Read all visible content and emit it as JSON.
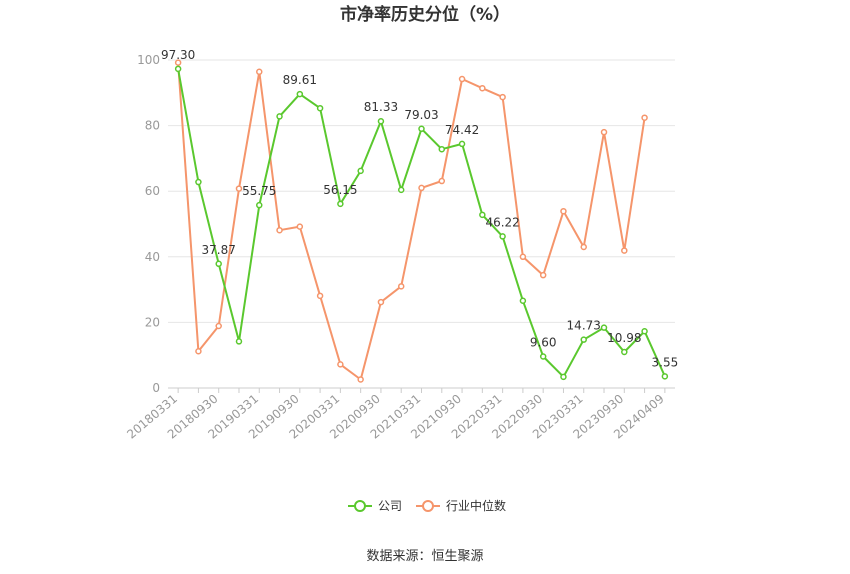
{
  "chart_data": {
    "type": "line",
    "title": "市净率历史分位（%）",
    "source": "数据来源：恒生聚源",
    "ylim": [
      0,
      100
    ],
    "yticks": [
      "0",
      "20",
      "40",
      "60",
      "80",
      "100"
    ],
    "x": [
      "20180331",
      "20180630",
      "20180930",
      "20181231",
      "20190331",
      "20190630",
      "20190930",
      "20191231",
      "20200331",
      "20200630",
      "20200930",
      "20201231",
      "20210331",
      "20210630",
      "20210930",
      "20211231",
      "20220331",
      "20220630",
      "20220930",
      "20221231",
      "20230331",
      "20230630",
      "20230930",
      "20231231",
      "20240409"
    ],
    "xticks": [
      "20180331",
      "20180930",
      "20190331",
      "20190930",
      "20200331",
      "20200930",
      "20210331",
      "20210930",
      "20220331",
      "20220930",
      "20230331",
      "20230930",
      "20240409"
    ],
    "grid": true,
    "legend_position": "bottom",
    "series": [
      {
        "name": "公司",
        "color": "#5ac82e",
        "values": [
          97.3,
          62.8,
          37.87,
          14.2,
          55.75,
          82.8,
          89.61,
          85.3,
          56.15,
          66.2,
          81.33,
          60.4,
          79.03,
          72.8,
          74.42,
          52.8,
          46.22,
          26.6,
          9.6,
          3.4,
          14.73,
          18.4,
          10.98,
          17.3,
          3.55
        ],
        "labels": [
          "97.30",
          "",
          "37.87",
          "",
          "55.75",
          "",
          "89.61",
          "",
          "56.15",
          "",
          "81.33",
          "",
          "79.03",
          "",
          "74.42",
          "",
          "46.22",
          "",
          "9.60",
          "",
          "14.73",
          "",
          "10.98",
          "",
          "3.55"
        ]
      },
      {
        "name": "行业中位数",
        "color": "#f5956b",
        "values": [
          99.2,
          11.2,
          18.9,
          60.8,
          96.4,
          48.1,
          49.2,
          28.1,
          7.2,
          2.6,
          26.2,
          31.0,
          61.0,
          63.1,
          94.2,
          91.4,
          88.7,
          40.0,
          34.4,
          53.9,
          43.0,
          78.0,
          41.9,
          82.4,
          null
        ]
      }
    ]
  }
}
